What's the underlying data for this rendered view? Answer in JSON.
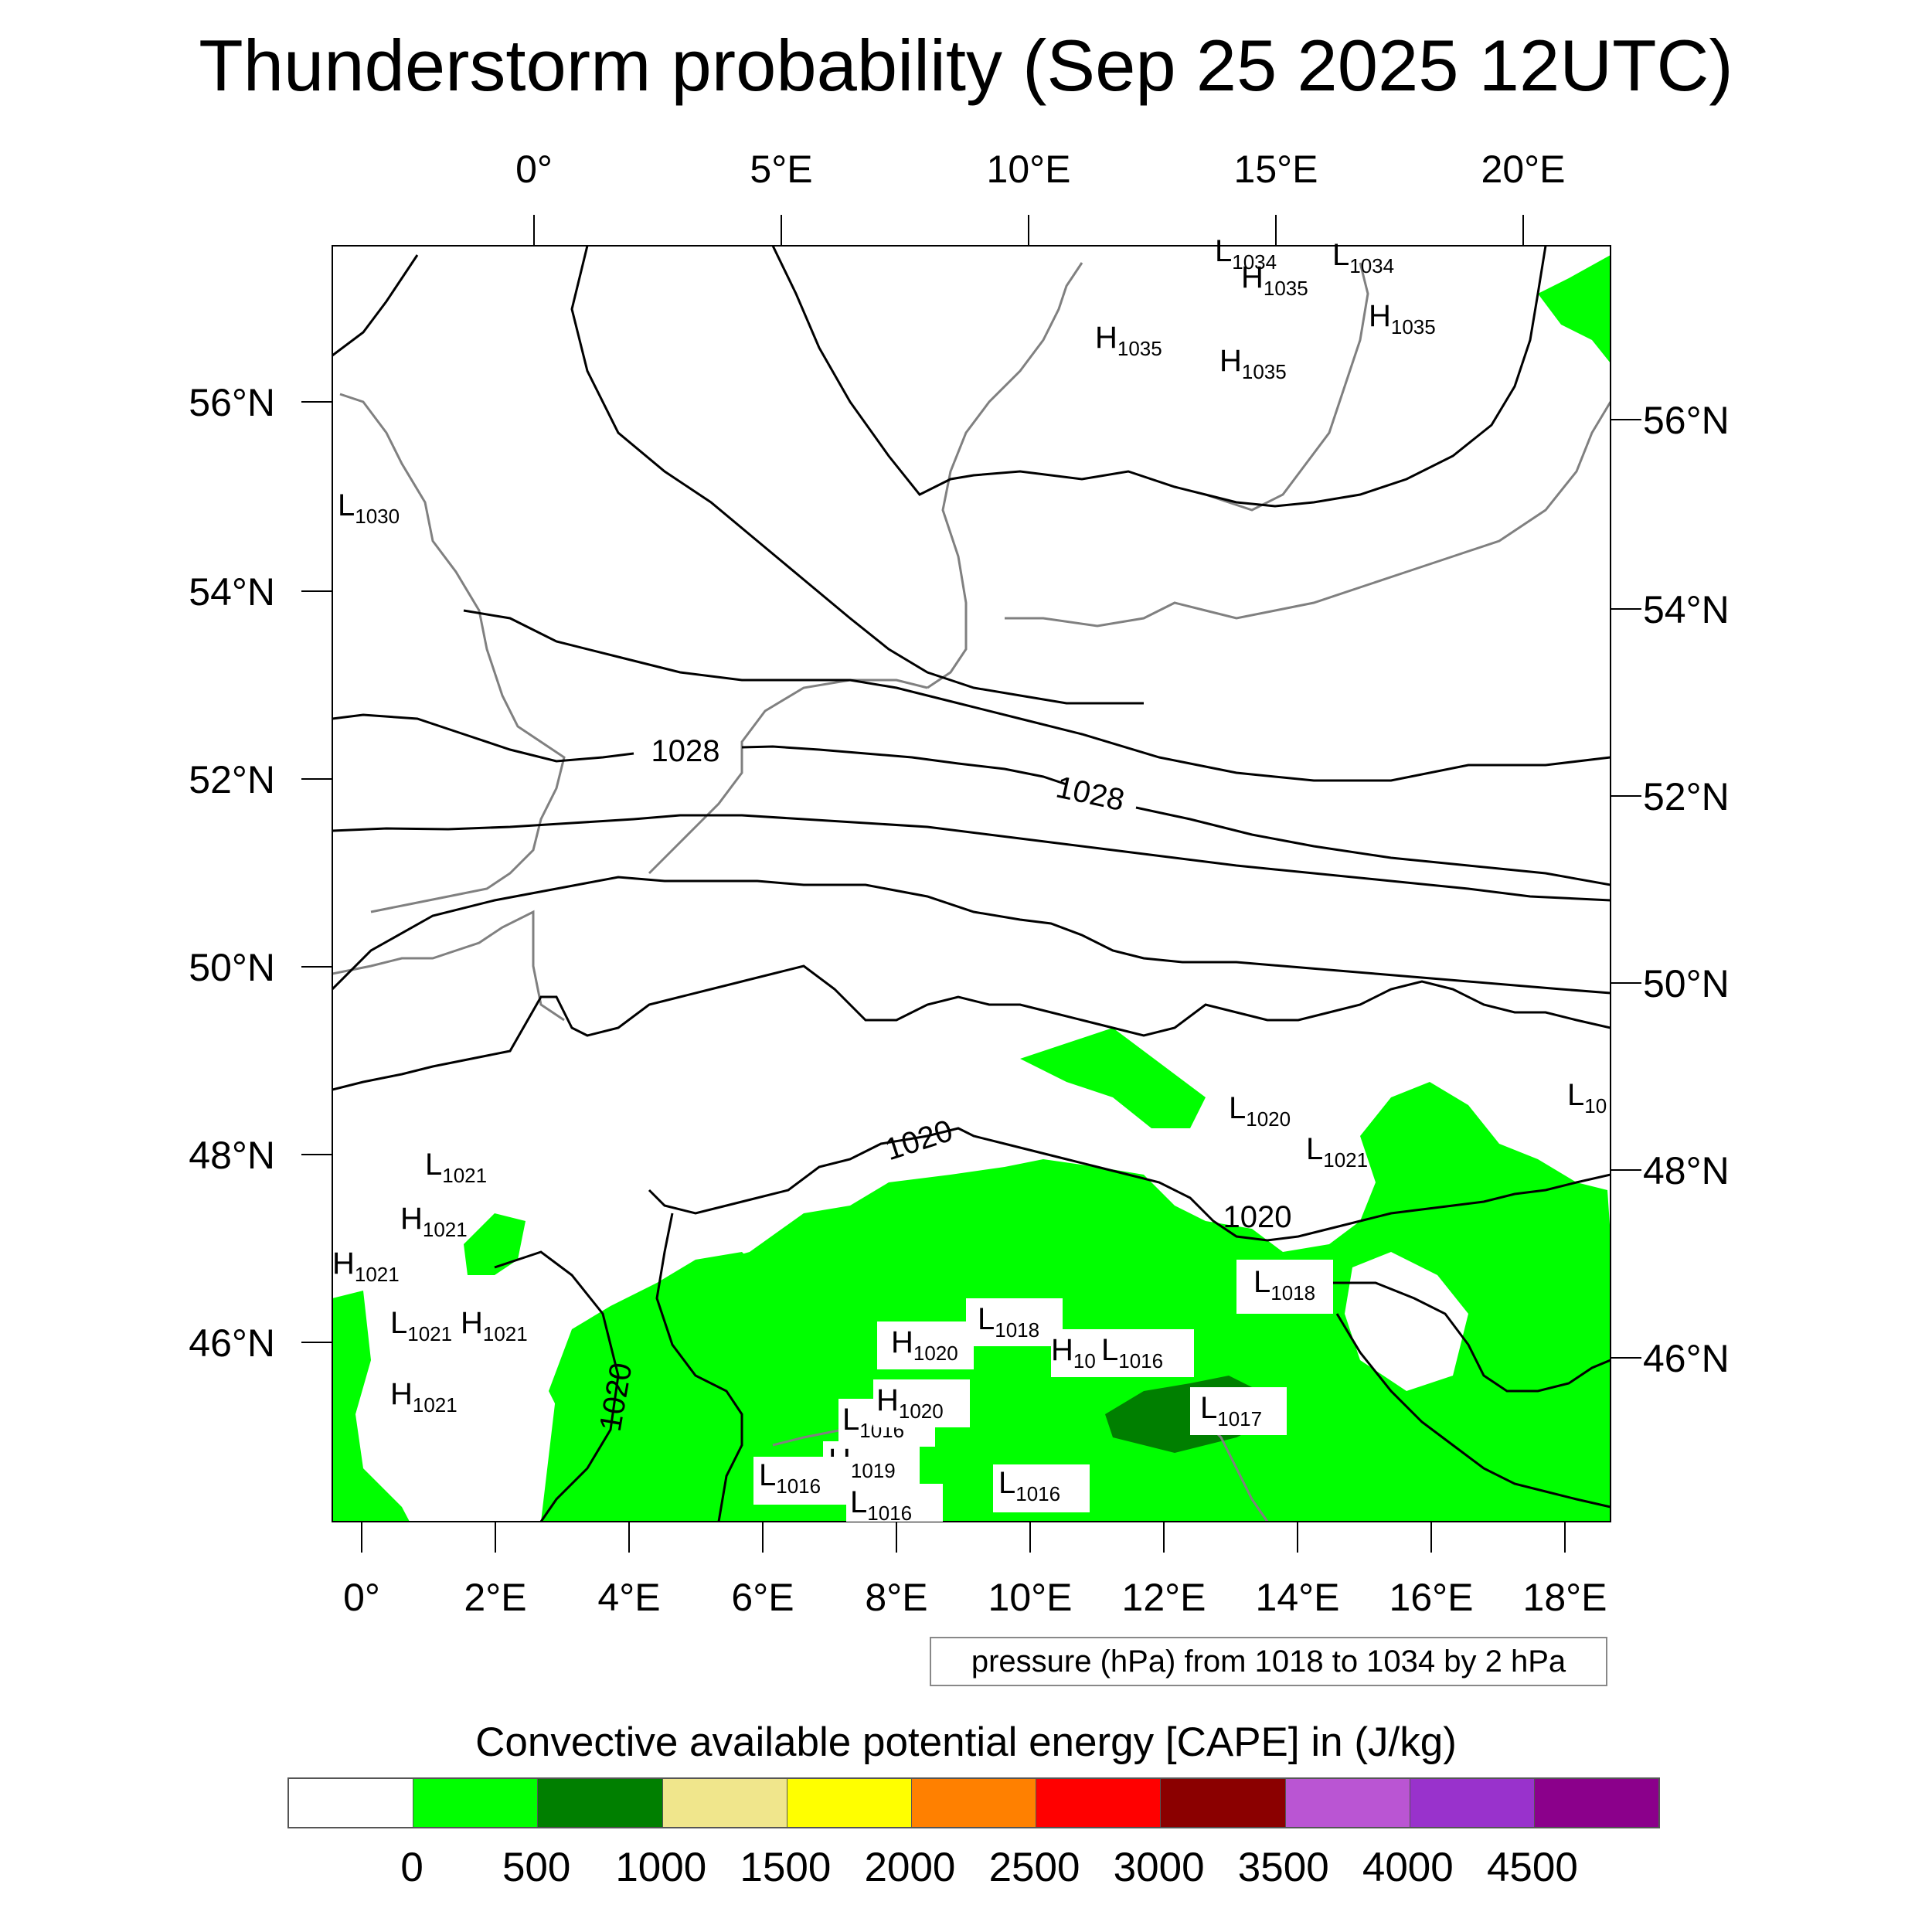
{
  "title": "Thunderstorm probability (Sep 25 2025 12UTC)",
  "map": {
    "top_lon_labels": [
      "0°",
      "5°E",
      "10°E",
      "15°E",
      "20°E"
    ],
    "bottom_lon_labels": [
      "0°",
      "2°E",
      "4°E",
      "6°E",
      "8°E",
      "10°E",
      "12°E",
      "14°E",
      "16°E",
      "18°E"
    ],
    "left_lat_labels": [
      "56°N",
      "54°N",
      "52°N",
      "50°N",
      "48°N",
      "46°N"
    ],
    "right_lat_labels": [
      "56°N",
      "54°N",
      "52°N",
      "50°N",
      "48°N",
      "46°N"
    ],
    "isobar_labels": [
      "1028",
      "1028",
      "1020",
      "1020",
      "1020"
    ],
    "pressure_centers": [
      {
        "type": "L",
        "value": "1034"
      },
      {
        "type": "L",
        "value": "1034"
      },
      {
        "type": "H",
        "value": "1035"
      },
      {
        "type": "H",
        "value": "1035"
      },
      {
        "type": "H",
        "value": "1035"
      },
      {
        "type": "H",
        "value": "1035"
      },
      {
        "type": "L",
        "value": "1030"
      },
      {
        "type": "L",
        "value": "1020"
      },
      {
        "type": "L",
        "value": "1021"
      },
      {
        "type": "L",
        "value": "1021"
      },
      {
        "type": "H",
        "value": "1021"
      },
      {
        "type": "H",
        "value": "1021"
      },
      {
        "type": "L",
        "value": "1021"
      },
      {
        "type": "H",
        "value": "1021"
      },
      {
        "type": "H",
        "value": "1021"
      },
      {
        "type": "L",
        "value": "1018"
      },
      {
        "type": "L",
        "value": "1018"
      },
      {
        "type": "H",
        "value": "1020"
      },
      {
        "type": "H",
        "value": "10"
      },
      {
        "type": "L",
        "value": "1016"
      },
      {
        "type": "L",
        "value": "1016"
      },
      {
        "type": "H",
        "value": "1020"
      },
      {
        "type": "L",
        "value": "1017"
      },
      {
        "type": "H",
        "value": "1019"
      },
      {
        "type": "L",
        "value": "1016"
      },
      {
        "type": "L",
        "value": "1016"
      },
      {
        "type": "L",
        "value": "1016"
      },
      {
        "type": "L",
        "value": "10"
      }
    ],
    "colors": {
      "coast": "#808080",
      "isobar": "#000000",
      "cape_low": "#00ff00",
      "cape_mid": "#007f00"
    }
  },
  "contour_info": "pressure (hPa) from 1018 to 1034 by 2 hPa",
  "legend": {
    "title": "Convective available potential energy [CAPE] in (J/kg)",
    "colors": [
      "#ffffff",
      "#00ff00",
      "#007f00",
      "#f0e68c",
      "#ffff00",
      "#ff8000",
      "#ff0000",
      "#8b0000",
      "#ba55d3",
      "#9932cc",
      "#8b008b"
    ],
    "labels": [
      "0",
      "500",
      "1000",
      "1500",
      "2000",
      "2500",
      "3000",
      "3500",
      "4000",
      "4500"
    ]
  }
}
